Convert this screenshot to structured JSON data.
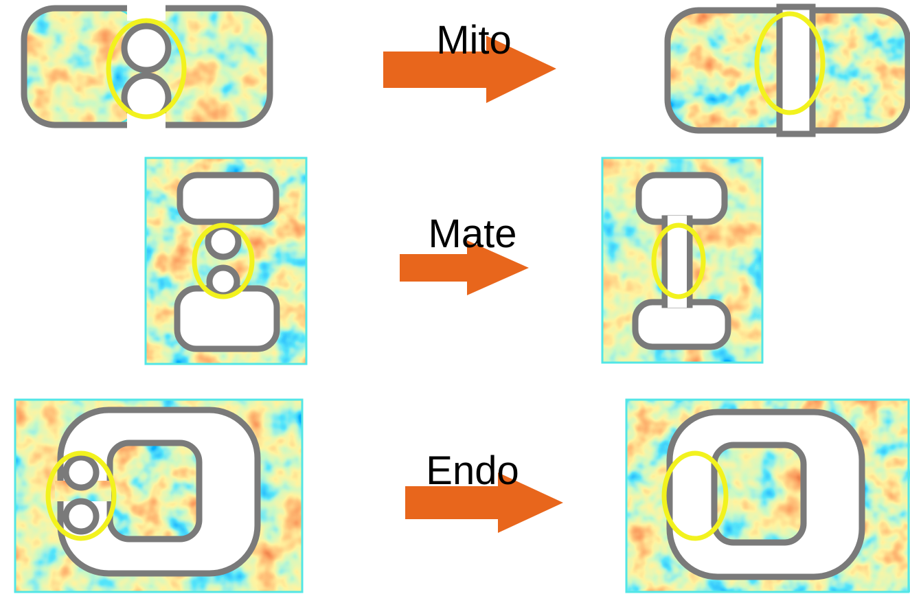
{
  "rows": [
    {
      "label": "Mito"
    },
    {
      "label": "Mate"
    },
    {
      "label": "Endo"
    }
  ]
}
